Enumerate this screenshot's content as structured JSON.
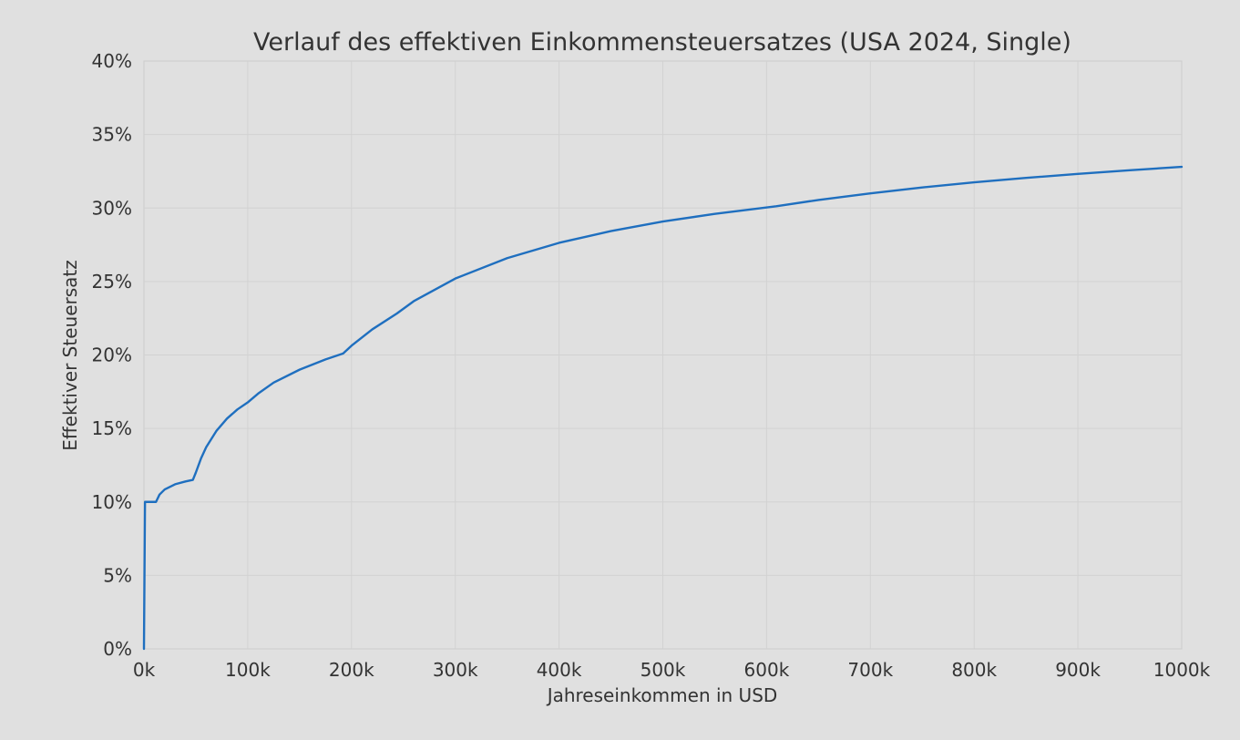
{
  "chart_data": {
    "type": "line",
    "title": "Verlauf des effektiven Einkommensteuersatzes (USA 2024, Single)",
    "xlabel": "Jahreseinkommen in USD",
    "ylabel": "Effektiver Steuersatz",
    "xlim": [
      0,
      1000000
    ],
    "ylim": [
      0,
      40
    ],
    "x_ticks": [
      0,
      100000,
      200000,
      300000,
      400000,
      500000,
      600000,
      700000,
      800000,
      900000,
      1000000
    ],
    "x_tick_labels": [
      "0k",
      "100k",
      "200k",
      "300k",
      "400k",
      "500k",
      "600k",
      "700k",
      "800k",
      "900k",
      "1000k"
    ],
    "y_ticks": [
      0,
      5,
      10,
      15,
      20,
      25,
      30,
      35,
      40
    ],
    "y_tick_labels": [
      "0%",
      "5%",
      "10%",
      "15%",
      "20%",
      "25%",
      "30%",
      "35%",
      "40%"
    ],
    "grid": true,
    "legend": "none",
    "colors": {
      "line": "#1f6fbf",
      "background": "#e0e0e0",
      "grid": "#d2d2d2"
    },
    "series": [
      {
        "values": [
          [
            0,
            0
          ],
          [
            1000,
            10.0
          ],
          [
            5000,
            10.0
          ],
          [
            11600,
            10.0
          ],
          [
            15000,
            10.5
          ],
          [
            20000,
            10.85
          ],
          [
            30000,
            11.2
          ],
          [
            40000,
            11.39
          ],
          [
            47150,
            11.5
          ],
          [
            50000,
            12.0
          ],
          [
            55000,
            12.96
          ],
          [
            60000,
            13.73
          ],
          [
            70000,
            14.85
          ],
          [
            80000,
            15.67
          ],
          [
            90000,
            16.29
          ],
          [
            100525,
            16.8
          ],
          [
            110000,
            17.37
          ],
          [
            125000,
            18.12
          ],
          [
            150000,
            19.0
          ],
          [
            175000,
            19.7
          ],
          [
            191950,
            20.1
          ],
          [
            200000,
            20.63
          ],
          [
            220000,
            21.74
          ],
          [
            243725,
            22.82
          ],
          [
            260000,
            23.66
          ],
          [
            300000,
            25.2
          ],
          [
            350000,
            26.59
          ],
          [
            400000,
            27.63
          ],
          [
            450000,
            28.43
          ],
          [
            500000,
            29.08
          ],
          [
            550000,
            29.6
          ],
          [
            609350,
            30.12
          ],
          [
            650000,
            30.55
          ],
          [
            700000,
            31.0
          ],
          [
            750000,
            31.4
          ],
          [
            800000,
            31.75
          ],
          [
            850000,
            32.05
          ],
          [
            900000,
            32.32
          ],
          [
            950000,
            32.57
          ],
          [
            1000000,
            32.8
          ]
        ]
      }
    ]
  }
}
